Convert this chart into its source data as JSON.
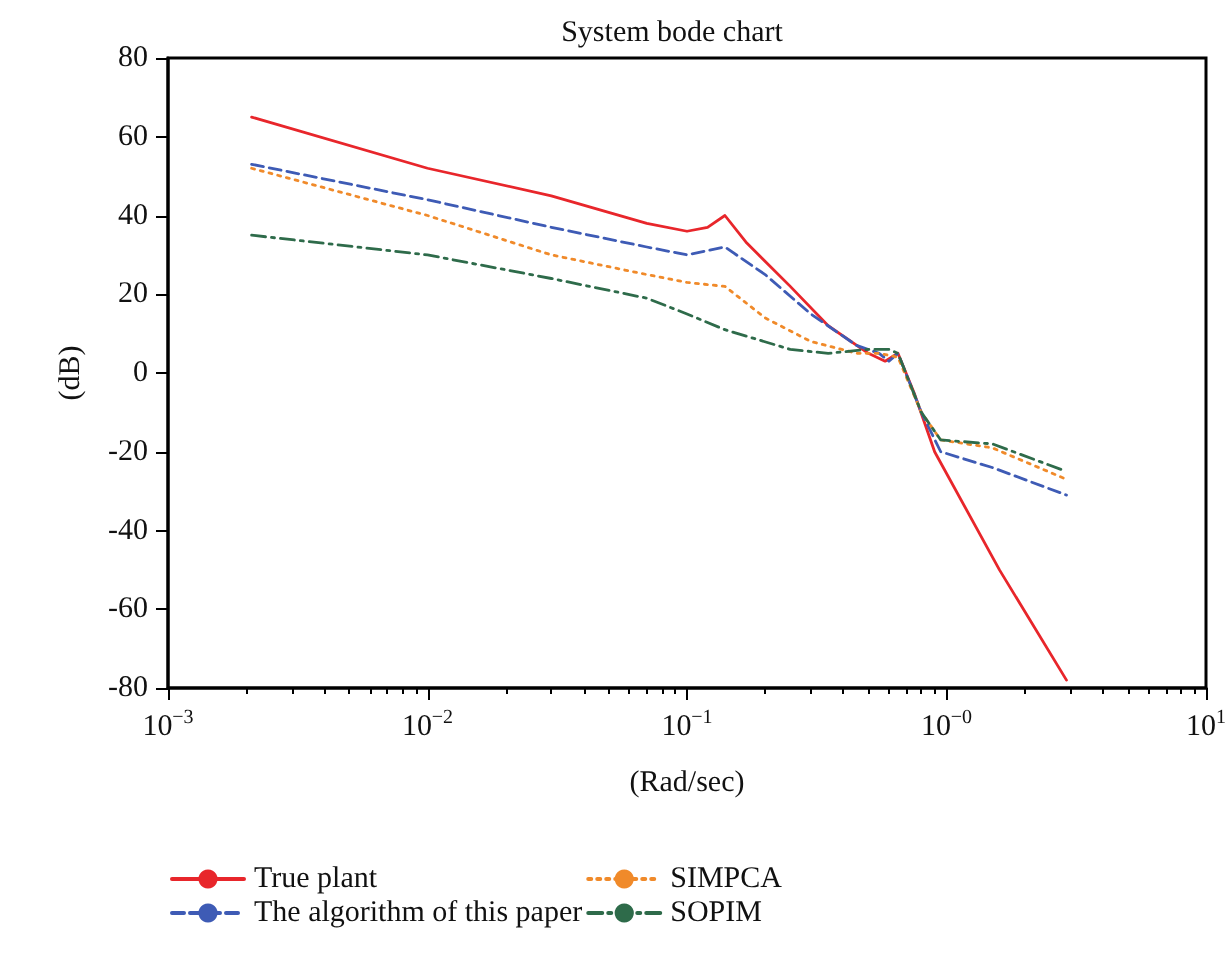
{
  "chart_data": {
    "type": "line",
    "title": "System bode chart",
    "xlabel": "(Rad/sec)",
    "ylabel": "(dB)",
    "log": "x",
    "grid": false,
    "legend": "bottom",
    "marker": "none",
    "xlim": [
      0.001,
      10
    ],
    "xticks": [
      {
        "value": 0.001,
        "label": "10$^{−3}$"
      },
      {
        "value": 0.01,
        "label": "10$^{−2}$"
      },
      {
        "value": 0.1,
        "label": "10$^{−1}$"
      },
      {
        "value": 1,
        "label": "10$^{−0}$"
      },
      {
        "value": 10,
        "label": "10$^{1}$"
      }
    ],
    "ylim": [
      -80,
      80
    ],
    "yticks": [
      -80,
      -60,
      -40,
      -20,
      0,
      20,
      40,
      60,
      80
    ],
    "x": [
      0.0021,
      0.01,
      0.03,
      0.07,
      0.1,
      0.12,
      0.14,
      0.17,
      0.25,
      0.35,
      0.5,
      0.58,
      0.65,
      0.75,
      0.9,
      1.6,
      2.9
    ],
    "series": [
      {
        "name": "True plant",
        "color": "#e8262b",
        "line_style": "solid",
        "values": [
          65,
          52,
          45,
          38,
          36,
          37,
          40,
          33,
          22,
          12,
          5,
          3,
          5,
          -5,
          -20,
          -50,
          -78
        ]
      },
      {
        "name": "The algorithm of this paper",
        "color": "#3e5bb5",
        "line_style": "dashed",
        "x": [
          0.0021,
          0.01,
          0.03,
          0.07,
          0.1,
          0.14,
          0.2,
          0.3,
          0.45,
          0.55,
          0.6,
          0.65,
          0.8,
          0.95,
          1.5,
          2.9
        ],
        "values": [
          53,
          44,
          37,
          32,
          30,
          32,
          25,
          15,
          7,
          5,
          3,
          5,
          -10,
          -20,
          -24,
          -31
        ]
      },
      {
        "name": "SIMPCA",
        "color": "#f08a2a",
        "line_style": "dotted",
        "x": [
          0.0021,
          0.01,
          0.03,
          0.07,
          0.1,
          0.14,
          0.2,
          0.3,
          0.45,
          0.55,
          0.65,
          0.8,
          0.95,
          1.5,
          2.9
        ],
        "values": [
          52,
          40,
          30,
          25,
          23,
          22,
          14,
          8,
          5,
          5,
          4,
          -10,
          -17,
          -19,
          -27
        ]
      },
      {
        "name": "SOPIM",
        "color": "#2e6b4a",
        "line_style": "dashdot",
        "x": [
          0.0021,
          0.01,
          0.03,
          0.07,
          0.1,
          0.14,
          0.25,
          0.35,
          0.5,
          0.6,
          0.65,
          0.8,
          0.95,
          1.5,
          2.9
        ],
        "values": [
          35,
          30,
          24,
          19,
          15,
          11,
          6,
          5,
          6,
          6,
          5,
          -10,
          -17,
          -18,
          -25
        ]
      }
    ]
  }
}
